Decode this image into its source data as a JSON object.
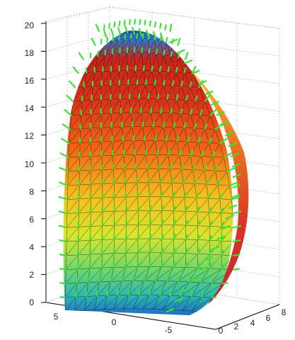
{
  "chart_data": {
    "type": "surface-3d",
    "surface": "shell surface (coloured mesh) with normal-vector arrows",
    "colormap": "jet",
    "mesh_color": "#111111",
    "arrow_color": "#3fe03a",
    "grid": true,
    "z_axis": {
      "ticks": [
        "0",
        "2",
        "4",
        "6",
        "8",
        "10",
        "12",
        "14",
        "16",
        "18",
        "20"
      ],
      "range": [
        0,
        20
      ]
    },
    "x_axis": {
      "ticks": [
        "5",
        "0",
        "-5"
      ],
      "range": [
        6,
        -8
      ]
    },
    "y_axis": {
      "ticks": [
        "0",
        "2",
        "4",
        "6",
        "8"
      ],
      "range": [
        0,
        8
      ]
    },
    "title": "",
    "xlabel": "",
    "ylabel": "",
    "zlabel": ""
  }
}
